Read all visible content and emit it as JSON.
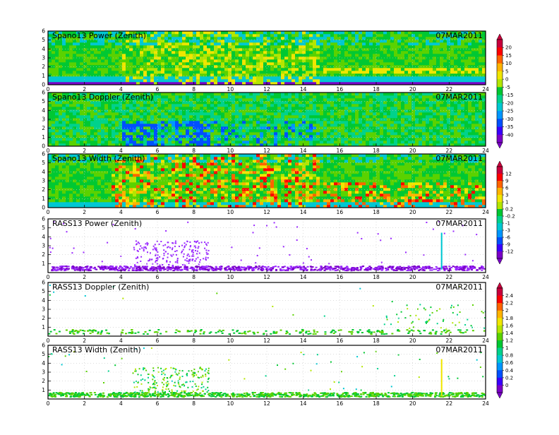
{
  "figure": {
    "date_label": "07MAR2011"
  },
  "chart_data": [
    {
      "type": "heatmap",
      "title": "Spano13 Power (Zenith)",
      "xlim": [
        0,
        24
      ],
      "ylim": [
        0,
        6
      ],
      "x_ticks": [
        0,
        2,
        4,
        6,
        8,
        10,
        12,
        14,
        16,
        18,
        20,
        22,
        24
      ],
      "y_ticks": [
        0,
        1,
        2,
        3,
        4,
        5,
        6
      ],
      "grid": true,
      "colorbar": [
        20,
        15,
        10,
        5,
        0,
        -5,
        -15,
        -20,
        -25,
        -30,
        -35,
        -40
      ]
    },
    {
      "type": "heatmap",
      "title": "Spano13 Doppler (Zenith)",
      "xlim": [
        0,
        24
      ],
      "ylim": [
        0,
        6
      ],
      "x_ticks": [
        0,
        2,
        4,
        6,
        8,
        10,
        12,
        14,
        16,
        18,
        20,
        22,
        24
      ],
      "y_ticks": [
        0,
        1,
        2,
        3,
        4,
        5,
        6
      ],
      "grid": true
    },
    {
      "type": "heatmap",
      "title": "Spano13 Width (Zenith)",
      "xlim": [
        0,
        24
      ],
      "ylim": [
        0,
        6
      ],
      "x_ticks": [
        0,
        2,
        4,
        6,
        8,
        10,
        12,
        14,
        16,
        18,
        20,
        22,
        24
      ],
      "y_ticks": [
        0,
        1,
        2,
        3,
        4,
        5,
        6
      ],
      "grid": true,
      "colorbar": [
        12,
        9,
        6,
        3,
        1,
        0.2,
        -0.2,
        -1,
        -3,
        -6,
        -9,
        -12
      ]
    },
    {
      "type": "scatter",
      "title": "RASS13 Power (Zenith)",
      "xlim": [
        0,
        24
      ],
      "ylim": [
        0,
        6
      ],
      "x_ticks": [
        0,
        2,
        4,
        6,
        8,
        10,
        12,
        14,
        16,
        18,
        20,
        22,
        24
      ],
      "y_ticks": [
        1,
        2,
        3,
        4,
        5,
        6
      ],
      "grid": true
    },
    {
      "type": "scatter",
      "title": "RASS13 Doppler (Zenith)",
      "xlim": [
        0,
        6
      ],
      "ylim": [
        0,
        6
      ],
      "x_ticks": [
        0,
        2,
        4,
        6,
        8,
        10,
        12,
        14,
        16,
        18,
        20,
        22,
        24
      ],
      "y_ticks": [
        1,
        2,
        3,
        4,
        5,
        6
      ],
      "grid": true,
      "colorbar": [
        2.4,
        2.2,
        2,
        1.8,
        1.6,
        1.4,
        1.2,
        1,
        0.8,
        0.6,
        0.4,
        0.2,
        0
      ]
    },
    {
      "type": "scatter",
      "title": "RASS13 Width (Zenith)",
      "xlim": [
        0,
        24
      ],
      "ylim": [
        0,
        6
      ],
      "x_ticks": [
        0,
        2,
        4,
        6,
        8,
        10,
        12,
        14,
        16,
        18,
        20,
        22,
        24
      ],
      "y_ticks": [
        1,
        2,
        3,
        4,
        5,
        6
      ],
      "grid": true
    }
  ]
}
